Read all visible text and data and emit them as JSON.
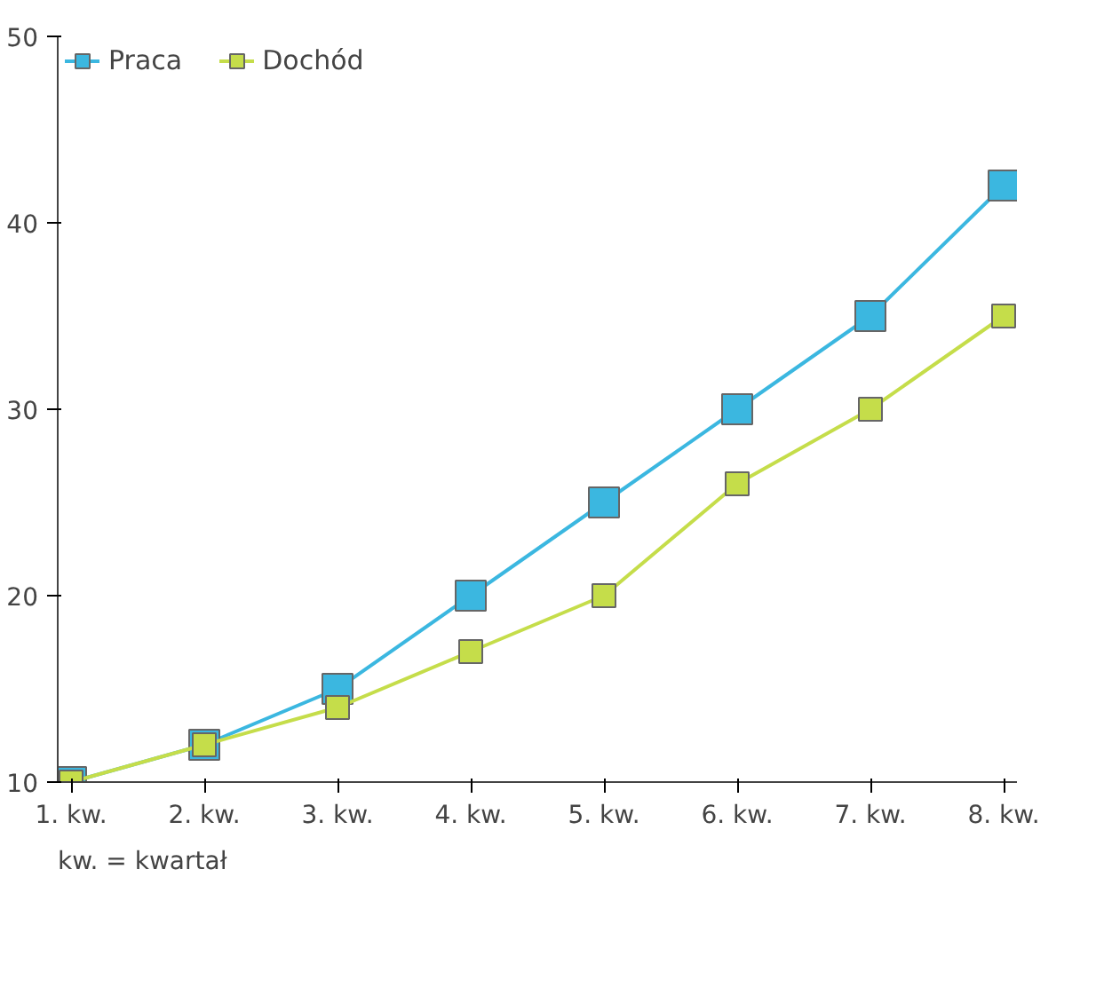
{
  "chart_data": {
    "type": "line",
    "categories": [
      "1. kw.",
      "2. kw.",
      "3. kw.",
      "4. kw.",
      "5. kw.",
      "6. kw.",
      "7. kw.",
      "8. kw."
    ],
    "series": [
      {
        "name": "Praca",
        "color": "#3bb7e0",
        "values": [
          10,
          12,
          15,
          20,
          25,
          30,
          35,
          42
        ]
      },
      {
        "name": "Dochód",
        "color": "#c5dd4a",
        "values": [
          10,
          12,
          14,
          17,
          20,
          26,
          30,
          35
        ]
      }
    ],
    "ylim": [
      10,
      50
    ],
    "yticks": [
      10,
      20,
      30,
      40,
      50
    ],
    "grid": false,
    "legend": "top left",
    "marker": "square",
    "line_style": "solid",
    "annotations": [
      "kw. = kwartał"
    ]
  }
}
